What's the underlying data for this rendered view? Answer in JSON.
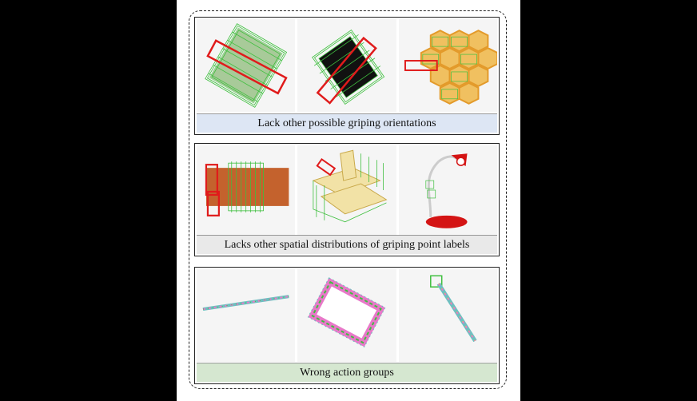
{
  "panels": [
    {
      "caption": "Lack other possible griping orientations",
      "caption_color": "#dde6f4",
      "images": [
        "rectangular-block-grasps",
        "dark-block-grasps",
        "honeycomb-tray-grasps"
      ]
    },
    {
      "caption": "Lacks other spatial distributions of griping point labels",
      "caption_color": "#e9e9e9",
      "images": [
        "brown-board-grasps",
        "folding-chair-grasps",
        "desk-lamp-grasps"
      ]
    },
    {
      "caption": "Wrong action groups",
      "caption_color": "#d5e7d0",
      "images": [
        "thin-rod-grasps",
        "picture-frame-grasps",
        "long-handle-grasps"
      ]
    }
  ],
  "colors": {
    "grasp_candidate": "#3fbf3f",
    "grasp_error": "#e01b1b",
    "outer_border": "#222222"
  }
}
